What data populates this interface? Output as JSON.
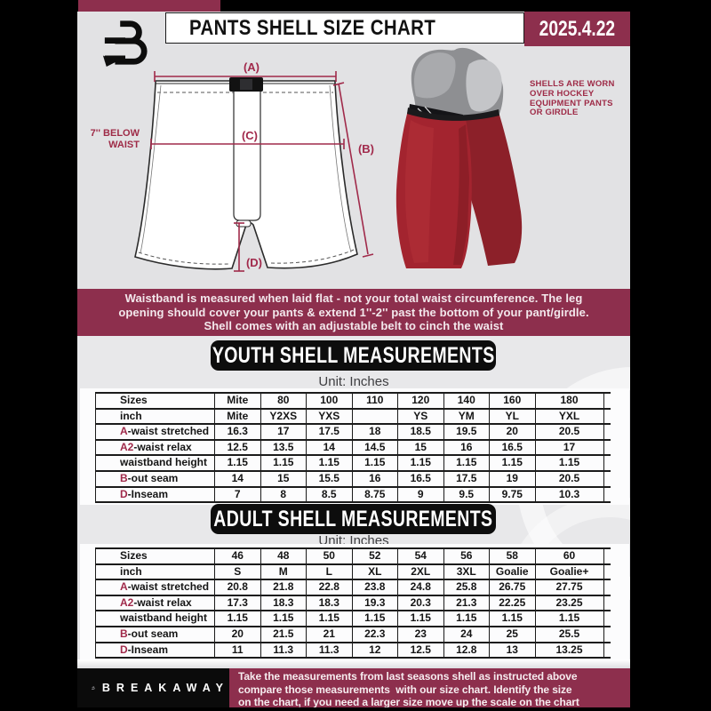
{
  "header": {
    "title": "PANTS SHELL SIZE CHART",
    "date": "2025.4.22"
  },
  "diagram": {
    "dim_a": "(A)",
    "dim_b": "(B)",
    "dim_c": "(C)",
    "dim_d": "(D)",
    "below_waist_note": "7'' BELOW\nWAIST",
    "shell_note": "SHELLS ARE WORN\nOVER HOCKEY\nEQUIPMENT PANTS\nOR GIRDLE"
  },
  "banner": {
    "text": "Waistband is measured when laid flat - not your total waist circumference. The leg\nopening should cover your pants & extend 1''-2'' past the bottom of your pant/girdle.\nShell comes with an adjustable belt to cinch the waist"
  },
  "youth": {
    "heading": "YOUTH SHELL MEASUREMENTS",
    "unit": "Unit: Inches",
    "rows": [
      {
        "prefix": "",
        "label": "Sizes",
        "values": [
          "Mite",
          "80",
          "100",
          "110",
          "120",
          "140",
          "160",
          "180"
        ]
      },
      {
        "prefix": "",
        "label": "inch",
        "values": [
          "Mite",
          "Y2XS",
          "YXS",
          "",
          "YS",
          "YM",
          "YL",
          "YXL"
        ]
      },
      {
        "prefix": "A",
        "label": "-waist stretched",
        "values": [
          "16.3",
          "17",
          "17.5",
          "18",
          "18.5",
          "19.5",
          "20",
          "20.5"
        ]
      },
      {
        "prefix": "A2",
        "label": "-waist relax",
        "values": [
          "12.5",
          "13.5",
          "14",
          "14.5",
          "15",
          "16",
          "16.5",
          "17"
        ]
      },
      {
        "prefix": "",
        "label": "waistband height",
        "values": [
          "1.15",
          "1.15",
          "1.15",
          "1.15",
          "1.15",
          "1.15",
          "1.15",
          "1.15"
        ]
      },
      {
        "prefix": "B",
        "label": "-out seam",
        "values": [
          "14",
          "15",
          "15.5",
          "16",
          "16.5",
          "17.5",
          "19",
          "20.5"
        ]
      },
      {
        "prefix": "D",
        "label": "-Inseam",
        "values": [
          "7",
          "8",
          "8.5",
          "8.75",
          "9",
          "9.5",
          "9.75",
          "10.3"
        ]
      }
    ]
  },
  "adult": {
    "heading": "ADULT SHELL MEASUREMENTS",
    "unit": "Unit: Inches",
    "rows": [
      {
        "prefix": "",
        "label": "Sizes",
        "values": [
          "46",
          "48",
          "50",
          "52",
          "54",
          "56",
          "58",
          "60"
        ]
      },
      {
        "prefix": "",
        "label": "inch",
        "values": [
          "S",
          "M",
          "L",
          "XL",
          "2XL",
          "3XL",
          "Goalie",
          "Goalie+"
        ]
      },
      {
        "prefix": "A",
        "label": "-waist stretched",
        "values": [
          "20.8",
          "21.8",
          "22.8",
          "23.8",
          "24.8",
          "25.8",
          "26.75",
          "27.75"
        ]
      },
      {
        "prefix": "A2",
        "label": "-waist relax",
        "values": [
          "17.3",
          "18.3",
          "18.3",
          "19.3",
          "20.3",
          "21.3",
          "22.25",
          "23.25"
        ]
      },
      {
        "prefix": "",
        "label": "waistband height",
        "values": [
          "1.15",
          "1.15",
          "1.15",
          "1.15",
          "1.15",
          "1.15",
          "1.15",
          "1.15"
        ]
      },
      {
        "prefix": "B",
        "label": "-out seam",
        "values": [
          "20",
          "21.5",
          "21",
          "22.3",
          "23",
          "24",
          "25",
          "25.5"
        ]
      },
      {
        "prefix": "D",
        "label": "-Inseam",
        "values": [
          "11",
          "11.3",
          "11.3",
          "12",
          "12.5",
          "12.8",
          "13",
          "13.25"
        ]
      }
    ]
  },
  "footer": {
    "brand": "BREAKAWAY",
    "note": "Take the measurements from last seasons shell as instructed above\ncompare those measurements  with our size chart. Identify the size\non the chart, if you need a larger size move up the scale on the chart"
  },
  "colors": {
    "maroon": "#8D2F4D",
    "accent_line": "#A02A4A",
    "page_black": "#000000",
    "gray_bg": "#E2E2E4",
    "shell_red": "#A3242F"
  }
}
